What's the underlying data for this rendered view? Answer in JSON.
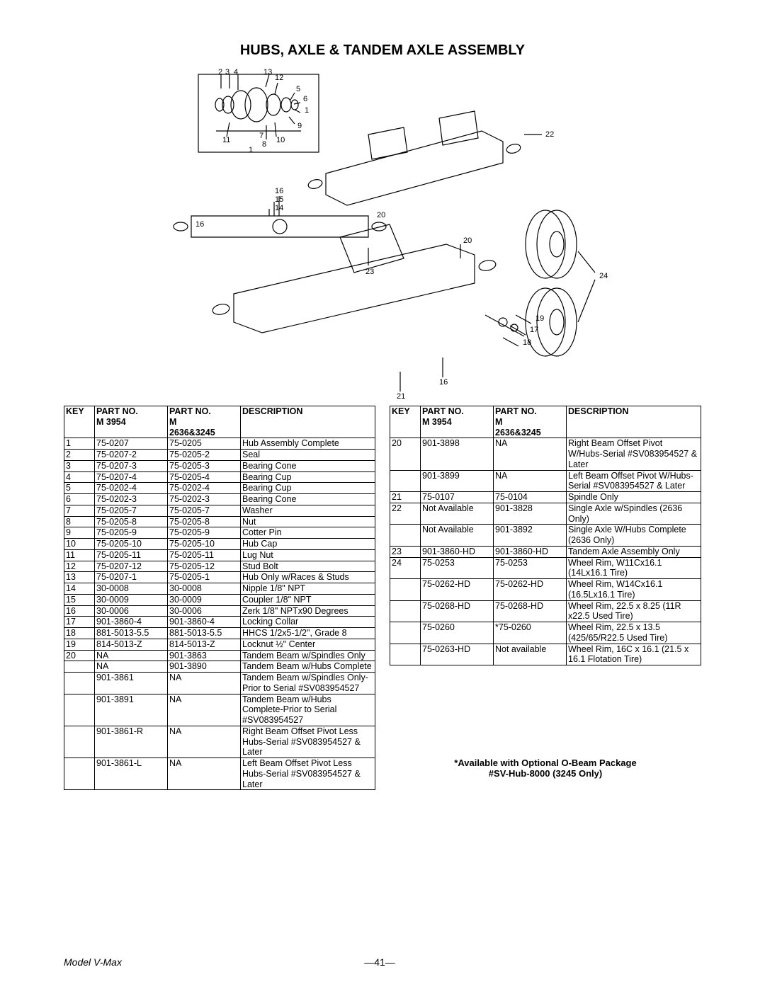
{
  "title": "HUBS, AXLE & TANDEM AXLE ASSEMBLY",
  "diagram": {
    "callouts": [
      "1",
      "2",
      "3",
      "4",
      "5",
      "6",
      "7",
      "8",
      "9",
      "10",
      "11",
      "12",
      "13",
      "14",
      "15",
      "16",
      "17",
      "18",
      "19",
      "20",
      "21",
      "22",
      "23",
      "24"
    ]
  },
  "headers": {
    "key": "KEY",
    "part1_a": "PART NO.",
    "part1_b": "M 3954",
    "part2_a": "PART NO.",
    "part2_b": "M",
    "part2_c": "2636&3245",
    "desc": "DESCRIPTION"
  },
  "leftRows": [
    {
      "k": "1",
      "p1": "75-0207",
      "p2": "75-0205",
      "d": "Hub Assembly Complete"
    },
    {
      "k": "2",
      "p1": "75-0207-2",
      "p2": "75-0205-2",
      "d": "Seal"
    },
    {
      "k": "3",
      "p1": "75-0207-3",
      "p2": "75-0205-3",
      "d": "Bearing Cone"
    },
    {
      "k": "4",
      "p1": "75-0207-4",
      "p2": "75-0205-4",
      "d": "Bearing Cup"
    },
    {
      "k": "5",
      "p1": "75-0202-4",
      "p2": "75-0202-4",
      "d": "Bearing Cup"
    },
    {
      "k": "6",
      "p1": "75-0202-3",
      "p2": "75-0202-3",
      "d": "Bearing Cone"
    },
    {
      "k": "7",
      "p1": "75-0205-7",
      "p2": "75-0205-7",
      "d": "Washer"
    },
    {
      "k": "8",
      "p1": "75-0205-8",
      "p2": "75-0205-8",
      "d": "Nut"
    },
    {
      "k": "9",
      "p1": "75-0205-9",
      "p2": "75-0205-9",
      "d": "Cotter Pin"
    },
    {
      "k": "10",
      "p1": "75-0205-10",
      "p2": "75-0205-10",
      "d": "Hub Cap"
    },
    {
      "k": "11",
      "p1": "75-0205-11",
      "p2": "75-0205-11",
      "d": "Lug Nut"
    },
    {
      "k": "12",
      "p1": "75-0207-12",
      "p2": "75-0205-12",
      "d": "Stud Bolt"
    },
    {
      "k": "13",
      "p1": "75-0207-1",
      "p2": "75-0205-1",
      "d": "Hub Only w/Races & Studs"
    },
    {
      "k": "14",
      "p1": "30-0008",
      "p2": "30-0008",
      "d": "Nipple 1/8\" NPT"
    },
    {
      "k": "15",
      "p1": "30-0009",
      "p2": "30-0009",
      "d": "Coupler 1/8\" NPT"
    },
    {
      "k": "16",
      "p1": "30-0006",
      "p2": "30-0006",
      "d": "Zerk 1/8\" NPTx90 Degrees"
    },
    {
      "k": "17",
      "p1": "901-3860-4",
      "p2": "901-3860-4",
      "d": "Locking Collar"
    },
    {
      "k": "18",
      "p1": "881-5013-5.5",
      "p2": "881-5013-5.5",
      "d": "HHCS 1/2x5-1/2\", Grade 8"
    },
    {
      "k": "19",
      "p1": "814-5013-Z",
      "p2": "814-5013-Z",
      "d": "Locknut ½\" Center"
    },
    {
      "k": "20",
      "p1": "NA",
      "p2": "901-3863",
      "d": "Tandem Beam w/Spindles Only"
    },
    {
      "k": "",
      "p1": "NA",
      "p2": "901-3890",
      "d": "Tandem Beam w/Hubs Complete"
    },
    {
      "k": "",
      "p1": "901-3861",
      "p2": "NA",
      "d": "Tandem Beam w/Spindles Only-Prior to Serial #SV083954527"
    },
    {
      "k": "",
      "p1": "901-3891",
      "p2": "NA",
      "d": "Tandem Beam w/Hubs Complete-Prior to Serial #SV083954527"
    },
    {
      "k": "",
      "p1": "901-3861-R",
      "p2": "NA",
      "d": "Right Beam Offset Pivot Less Hubs-Serial #SV083954527 & Later"
    },
    {
      "k": "",
      "p1": "901-3861-L",
      "p2": "NA",
      "d": "Left Beam Offset Pivot Less Hubs-Serial #SV083954527 & Later"
    }
  ],
  "rightRows": [
    {
      "k": "20",
      "p1": "901-3898",
      "p2": "NA",
      "d": "Right Beam Offset Pivot W/Hubs-Serial #SV083954527 & Later"
    },
    {
      "k": "",
      "p1": "901-3899",
      "p2": "NA",
      "d": "Left Beam Offset Pivot W/Hubs-Serial #SV083954527 & Later"
    },
    {
      "k": "21",
      "p1": "75-0107",
      "p2": "75-0104",
      "d": "Spindle Only"
    },
    {
      "k": "22",
      "p1": "Not Available",
      "p2": "901-3828",
      "d": "Single Axle w/Spindles (2636 Only)"
    },
    {
      "k": "",
      "p1": "Not Available",
      "p2": "901-3892",
      "d": "Single Axle W/Hubs Complete (2636 Only)"
    },
    {
      "k": "23",
      "p1": "901-3860-HD",
      "p2": "901-3860-HD",
      "d": "Tandem Axle Assembly Only"
    },
    {
      "k": "24",
      "p1": "75-0253",
      "p2": "75-0253",
      "d": "Wheel Rim, W11Cx16.1 (14Lx16.1 Tire)"
    },
    {
      "k": "",
      "p1": "75-0262-HD",
      "p2": "75-0262-HD",
      "d": "Wheel Rim, W14Cx16.1 (16.5Lx16.1 Tire)"
    },
    {
      "k": "",
      "p1": "75-0268-HD",
      "p2": "75-0268-HD",
      "d": "Wheel Rim, 22.5 x 8.25 (11R x22.5 Used Tire)"
    },
    {
      "k": "",
      "p1": "75-0260",
      "p2": "*75-0260",
      "d": "Wheel Rim, 22.5 x 13.5 (425/65/R22.5 Used Tire)"
    },
    {
      "k": "",
      "p1": "75-0263-HD",
      "p2": "Not available",
      "d": "Wheel Rim, 16C x 16.1 (21.5 x 16.1 Flotation Tire)"
    }
  ],
  "note1": "*Available with Optional O-Beam Package",
  "note2": "#SV-Hub-8000 (3245 Only)",
  "footer": {
    "model": "Model V-Max",
    "page": "—41—"
  }
}
